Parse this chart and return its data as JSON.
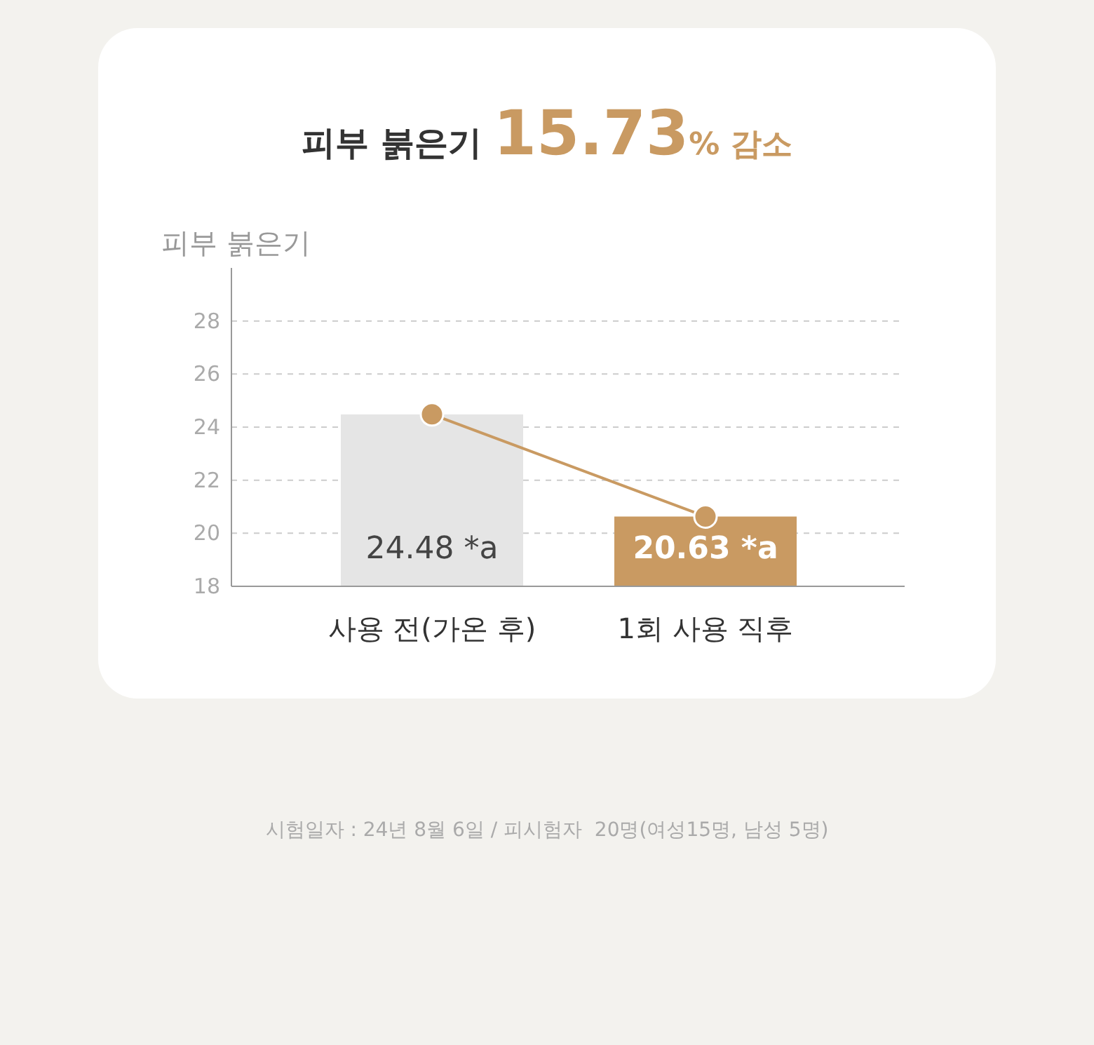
{
  "chart_data": {
    "type": "bar",
    "title": "피부 붉은기 15.73% 감소",
    "ylabel": "피부 붉은기",
    "categories": [
      "사용 전(가온 후)",
      "1회 사용 직후"
    ],
    "series": [
      {
        "values": [
          24.48,
          20.63
        ],
        "colors": [
          "#e5e5e5",
          "#c99a62"
        ],
        "value_labels": [
          "24.48 *a",
          "20.63 *a"
        ]
      },
      {
        "type": "line",
        "values": [
          24.48,
          20.63
        ],
        "color": "#c99a62",
        "marker": "circle"
      }
    ],
    "ylim": [
      18,
      30
    ],
    "yticks": [
      18,
      20,
      22,
      24,
      26,
      28
    ],
    "grid": "y",
    "annotations": [
      "시험일자 : 24년 8월 6일 / 피시험자  20명(여성15명, 남성 5명)"
    ]
  }
}
